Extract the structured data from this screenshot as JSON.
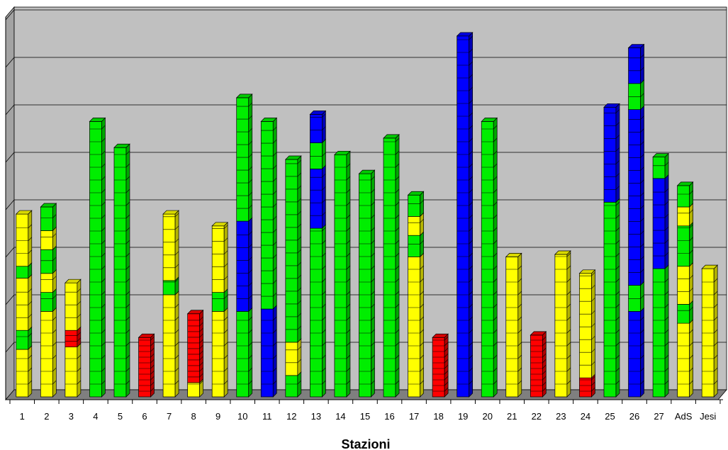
{
  "chart_data": {
    "type": "bar",
    "stacked": true,
    "segmented_3d_columns": true,
    "xlabel": "Stazioni",
    "ylabel": "",
    "title": "",
    "grid": true,
    "legend": "none",
    "ylim": [
      0,
      8
    ],
    "categories": [
      "1",
      "2",
      "3",
      "4",
      "5",
      "6",
      "7",
      "8",
      "9",
      "10",
      "11",
      "12",
      "13",
      "14",
      "15",
      "16",
      "17",
      "18",
      "19",
      "20",
      "21",
      "22",
      "23",
      "24",
      "25",
      "26",
      "27",
      "AdS",
      "Jesi"
    ],
    "colors": {
      "Y": "#ffff00",
      "G": "#00ee00",
      "B": "#0000ff",
      "R": "#ff0000"
    },
    "stacks": [
      [
        [
          "Y",
          1
        ],
        [
          "G",
          0.4
        ],
        [
          "Y",
          1.1
        ],
        [
          "G",
          0.25
        ],
        [
          "Y",
          1.1
        ]
      ],
      [
        [
          "Y",
          1.8
        ],
        [
          "G",
          0.4
        ],
        [
          "Y",
          0.4
        ],
        [
          "G",
          0.5
        ],
        [
          "Y",
          0.4
        ],
        [
          "G",
          0.5
        ]
      ],
      [
        [
          "Y",
          1.05
        ],
        [
          "R",
          0.35
        ],
        [
          "Y",
          1.0
        ]
      ],
      [
        [
          "G",
          5.8
        ]
      ],
      [
        [
          "G",
          5.25
        ]
      ],
      [
        [
          "R",
          1.25
        ]
      ],
      [
        [
          "Y",
          2.15
        ],
        [
          "G",
          0.3
        ],
        [
          "Y",
          1.4
        ]
      ],
      [
        [
          "Y",
          0.3
        ],
        [
          "R",
          1.45
        ]
      ],
      [
        [
          "Y",
          1.8
        ],
        [
          "G",
          0.4
        ],
        [
          "Y",
          1.4
        ]
      ],
      [
        [
          "G",
          1.8
        ],
        [
          "B",
          1.9
        ],
        [
          "G",
          2.6
        ]
      ],
      [
        [
          "B",
          1.85
        ],
        [
          "G",
          3.95
        ]
      ],
      [
        [
          "G",
          0.45
        ],
        [
          "Y",
          0.7
        ],
        [
          "G",
          3.85
        ]
      ],
      [
        [
          "G",
          3.55
        ],
        [
          "B",
          1.25
        ],
        [
          "G",
          0.55
        ],
        [
          "Y",
          0.0
        ],
        [
          "B",
          0.6
        ]
      ],
      [
        [
          "G",
          5.1
        ]
      ],
      [
        [
          "G",
          4.7
        ]
      ],
      [
        [
          "G",
          5.45
        ]
      ],
      [
        [
          "Y",
          2.95
        ],
        [
          "G",
          0.45
        ],
        [
          "Y",
          0.4
        ],
        [
          "G",
          0.45
        ]
      ],
      [
        [
          "R",
          1.25
        ]
      ],
      [
        [
          "B",
          7.6
        ]
      ],
      [
        [
          "G",
          5.8
        ]
      ],
      [
        [
          "Y",
          2.95
        ]
      ],
      [
        [
          "R",
          1.3
        ]
      ],
      [
        [
          "Y",
          3.0
        ]
      ],
      [
        [
          "R",
          0.4
        ],
        [
          "Y",
          2.2
        ]
      ],
      [
        [
          "G",
          4.1
        ],
        [
          "B",
          2.0
        ]
      ],
      [
        [
          "B",
          1.8
        ],
        [
          "G",
          0.55
        ],
        [
          "B",
          3.7
        ],
        [
          "G",
          0.55
        ],
        [
          "B",
          0.75
        ]
      ],
      [
        [
          "G",
          2.7
        ],
        [
          "B",
          1.9
        ],
        [
          "G",
          0.45
        ]
      ],
      [
        [
          "Y",
          1.55
        ],
        [
          "G",
          0.4
        ],
        [
          "Y",
          0.8
        ],
        [
          "G",
          0.85
        ],
        [
          "Y",
          0.4
        ],
        [
          "G",
          0.45
        ]
      ],
      [
        [
          "Y",
          2.7
        ]
      ]
    ]
  }
}
